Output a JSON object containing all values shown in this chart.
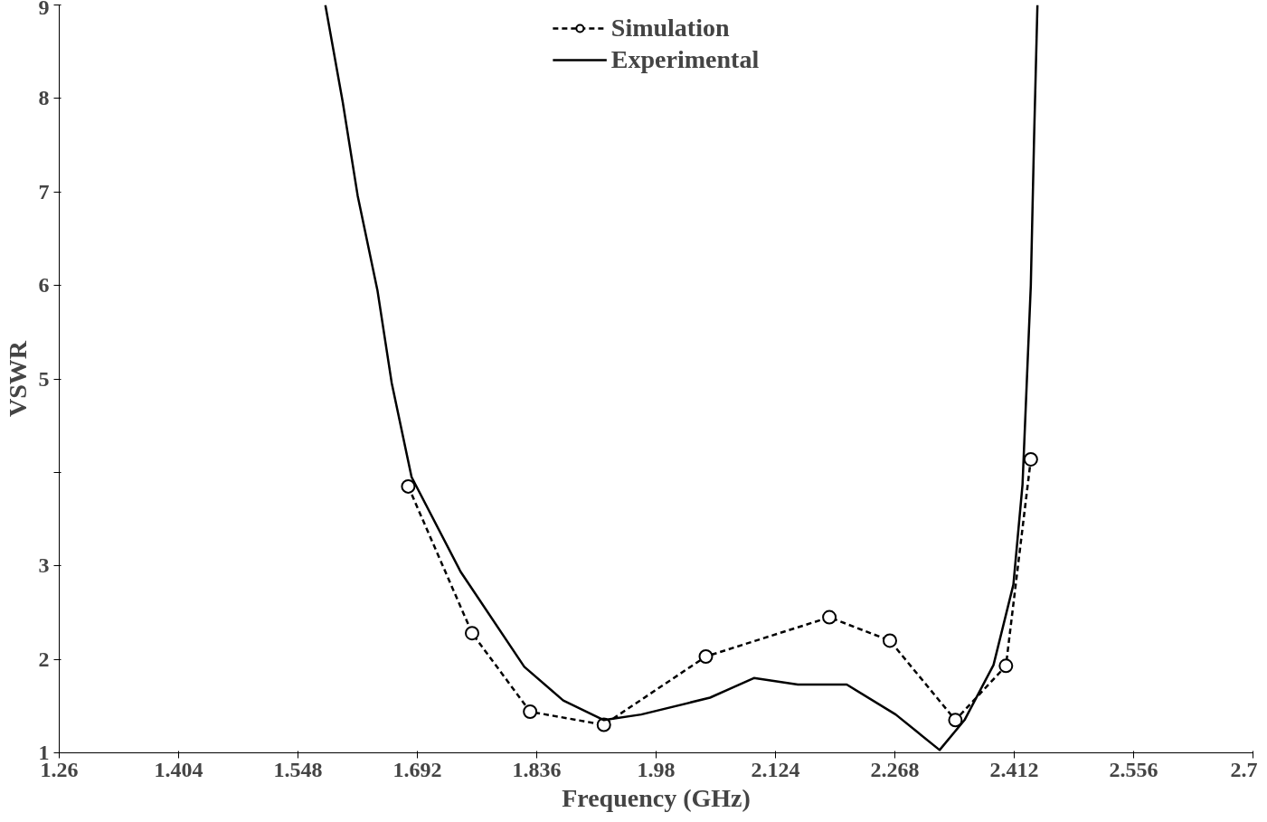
{
  "chart_data": {
    "type": "line",
    "xlabel": "Frequency (GHz)",
    "ylabel": "VSWR",
    "xlim": [
      1.26,
      2.7
    ],
    "ylim": [
      1,
      9
    ],
    "xticks": [
      1.26,
      1.404,
      1.548,
      1.692,
      1.836,
      1.98,
      2.124,
      2.268,
      2.412,
      2.556,
      2.7
    ],
    "yticks": [
      1,
      2,
      3,
      {
        "value": 4,
        "label": null
      },
      5,
      6,
      7,
      8,
      9
    ],
    "grid": false,
    "legend": "top",
    "series": [
      {
        "name": "Simulation",
        "color": "#000000",
        "line_style": "dashed",
        "marker": "circle",
        "x": [
          1.681,
          1.758,
          1.828,
          1.917,
          2.04,
          2.189,
          2.262,
          2.341,
          2.402,
          2.432
        ],
        "values": [
          3.85,
          2.28,
          1.44,
          1.3,
          2.03,
          2.45,
          2.2,
          1.35,
          1.93,
          4.14
        ]
      },
      {
        "name": "Experimental",
        "color": "#000000",
        "line_style": "solid",
        "marker": "none",
        "x": [
          1.581,
          1.602,
          1.62,
          1.644,
          1.661,
          1.685,
          1.744,
          1.821,
          1.868,
          1.917,
          1.962,
          2.045,
          2.098,
          2.151,
          2.21,
          2.269,
          2.322,
          2.352,
          2.387,
          2.411,
          2.422,
          2.432,
          2.436,
          2.44
        ],
        "values": [
          9,
          7.96,
          6.96,
          5.94,
          4.96,
          3.95,
          2.94,
          1.92,
          1.56,
          1.35,
          1.41,
          1.59,
          1.8,
          1.73,
          1.73,
          1.41,
          1.03,
          1.35,
          1.94,
          2.8,
          3.87,
          6.0,
          7.6,
          9
        ]
      }
    ]
  }
}
